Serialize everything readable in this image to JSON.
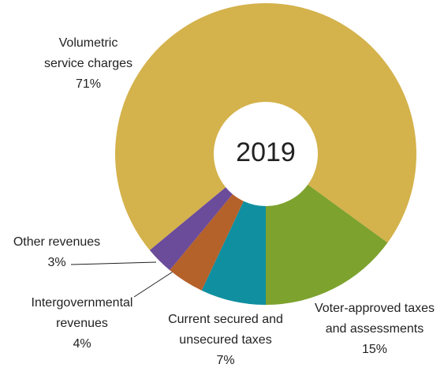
{
  "chart_data": {
    "type": "donut",
    "title": "2019",
    "categories": [
      [
        "Voter-approved taxes",
        "and assessments"
      ],
      [
        "Current secured and",
        "unsecured taxes"
      ],
      [
        "Intergovernmental",
        "revenues"
      ],
      [
        "Other revenues"
      ],
      [
        "Volumetric",
        "service charges"
      ]
    ],
    "values": [
      15,
      7,
      4,
      3,
      71
    ],
    "value_labels": [
      "15%",
      "7%",
      "4%",
      "3%",
      "71%"
    ],
    "colors": [
      "#7da22e",
      "#0f8fa0",
      "#b5612a",
      "#6b4c9a",
      "#d4b24c"
    ]
  }
}
